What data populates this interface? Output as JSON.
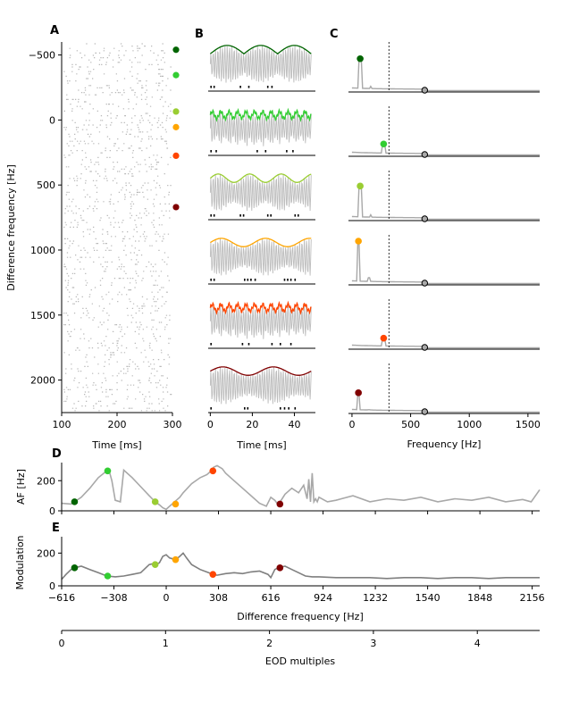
{
  "chart_data": [
    {
      "panel": "A",
      "type": "scatter",
      "xlabel": "Time [ms]",
      "ylabel": "Difference frequency [Hz]",
      "xlim": [
        100,
        300
      ],
      "ylim": [
        -600,
        2250
      ],
      "xticks": [
        "100",
        "200",
        "300"
      ],
      "yticks": [
        {
          "v": -500,
          "t": "−500"
        },
        {
          "v": 0,
          "t": "0"
        },
        {
          "v": 500,
          "t": "500"
        },
        {
          "v": 1000,
          "t": "1000"
        },
        {
          "v": 1500,
          "t": "1500"
        },
        {
          "v": 2000,
          "t": "2000"
        }
      ],
      "markers": [
        {
          "y": -540,
          "color": "#006400"
        },
        {
          "y": -345,
          "color": "#32cd32"
        },
        {
          "y": -65,
          "color": "#9acd32"
        },
        {
          "y": 55,
          "color": "#ffa500"
        },
        {
          "y": 275,
          "color": "#ff4500"
        },
        {
          "y": 670,
          "color": "#800000"
        }
      ]
    },
    {
      "panel": "B",
      "type": "line",
      "xlabel": "Time [ms]",
      "xlim": [
        -1,
        50
      ],
      "xticks": [
        "0",
        "20",
        "40"
      ],
      "rows": [
        {
          "color": "#006400",
          "env_period": 16,
          "env_shape": "scallop",
          "spikes": [
            0,
            1.5,
            14,
            18,
            27,
            29
          ]
        },
        {
          "color": "#32cd32",
          "env_period": 4,
          "env_shape": "jagged",
          "spikes": [
            0,
            2.5,
            22,
            26,
            36,
            39
          ]
        },
        {
          "color": "#9acd32",
          "env_period": 15,
          "env_shape": "sine",
          "spikes": [
            0,
            1.5,
            14,
            15.5,
            27,
            28.5,
            40,
            41.5
          ]
        },
        {
          "color": "#ffa500",
          "env_period": 21,
          "env_shape": "sine",
          "spikes": [
            0,
            1.5,
            16,
            17.5,
            19,
            21,
            35,
            36.5,
            38,
            40
          ]
        },
        {
          "color": "#ff4500",
          "env_period": 4,
          "env_shape": "jagged",
          "spikes": [
            0,
            15,
            18,
            29,
            33,
            38
          ]
        },
        {
          "color": "#800000",
          "env_period": 24,
          "env_shape": "sine",
          "spikes": [
            0,
            16,
            17.5,
            33,
            35,
            37,
            40
          ]
        }
      ]
    },
    {
      "panel": "C",
      "type": "line",
      "xlabel": "Frequency [Hz]",
      "xlim": [
        -30,
        1600
      ],
      "xticks": [
        "0",
        "500",
        "1000",
        "1500"
      ],
      "eod_line": 315,
      "open_marker_x": 620,
      "rows": [
        {
          "color": "#006400",
          "peak_x": 70,
          "peak_level": 0.75
        },
        {
          "color": "#32cd32",
          "peak_x": 270,
          "peak_level": 0.25
        },
        {
          "color": "#9acd32",
          "peak_x": 70,
          "peak_level": 0.78
        },
        {
          "color": "#ffa500",
          "peak_x": 55,
          "peak_level": 1.0
        },
        {
          "color": "#ff4500",
          "peak_x": 270,
          "peak_level": 0.22
        },
        {
          "color": "#800000",
          "peak_x": 55,
          "peak_level": 0.45
        }
      ]
    },
    {
      "panel": "D",
      "type": "line",
      "ylabel": "AF [Hz]",
      "xlim": [
        -616,
        2200
      ],
      "ylim": [
        0,
        320
      ],
      "yticks": [
        "0",
        "200"
      ],
      "x": [
        -616,
        -560,
        -540,
        -500,
        -450,
        -400,
        -350,
        -335,
        -320,
        -300,
        -270,
        -250,
        -200,
        -150,
        -100,
        -65,
        -40,
        -20,
        0,
        20,
        40,
        60,
        80,
        100,
        150,
        200,
        240,
        260,
        280,
        300,
        330,
        350,
        400,
        450,
        500,
        550,
        590,
        616,
        640,
        660,
        700,
        740,
        780,
        810,
        830,
        840,
        850,
        860,
        870,
        880,
        890,
        900,
        950,
        1000,
        1100,
        1200,
        1300,
        1400,
        1500,
        1600,
        1700,
        1800,
        1900,
        2000,
        2100,
        2150,
        2200
      ],
      "y": [
        50,
        45,
        60,
        90,
        150,
        220,
        265,
        260,
        200,
        70,
        60,
        270,
        220,
        160,
        100,
        60,
        40,
        20,
        10,
        30,
        50,
        70,
        90,
        120,
        180,
        220,
        240,
        260,
        290,
        300,
        280,
        250,
        200,
        150,
        100,
        50,
        30,
        90,
        70,
        40,
        110,
        150,
        120,
        170,
        80,
        210,
        60,
        250,
        60,
        80,
        60,
        90,
        60,
        70,
        100,
        60,
        80,
        70,
        90,
        60,
        80,
        70,
        90,
        60,
        75,
        60,
        140
      ],
      "markers": [
        {
          "x": -540,
          "y": 60,
          "color": "#006400"
        },
        {
          "x": -345,
          "y": 265,
          "color": "#32cd32"
        },
        {
          "x": -65,
          "y": 60,
          "color": "#9acd32"
        },
        {
          "x": 55,
          "y": 45,
          "color": "#ffa500"
        },
        {
          "x": 275,
          "y": 265,
          "color": "#ff4500"
        },
        {
          "x": 670,
          "y": 45,
          "color": "#800000"
        }
      ]
    },
    {
      "panel": "E",
      "type": "line",
      "xlabel": "Difference frequency [Hz]",
      "ylabel": "Modulation",
      "xlim": [
        -616,
        2200
      ],
      "ylim": [
        0,
        300
      ],
      "yticks": [
        "0",
        "200"
      ],
      "xticks": [
        "−616",
        "−308",
        "0",
        "308",
        "616",
        "924",
        "1232",
        "1540",
        "1848",
        "2156"
      ],
      "x": [
        -616,
        -590,
        -560,
        -540,
        -500,
        -450,
        -400,
        -350,
        -300,
        -250,
        -200,
        -150,
        -120,
        -100,
        -80,
        -65,
        -40,
        -20,
        0,
        20,
        40,
        55,
        80,
        100,
        120,
        150,
        200,
        250,
        275,
        300,
        350,
        400,
        450,
        500,
        550,
        600,
        616,
        640,
        660,
        680,
        700,
        740,
        780,
        820,
        860,
        900,
        1000,
        1100,
        1200,
        1300,
        1400,
        1500,
        1600,
        1700,
        1800,
        1900,
        2000,
        2100,
        2200
      ],
      "y": [
        40,
        70,
        100,
        110,
        120,
        100,
        80,
        60,
        55,
        60,
        70,
        80,
        110,
        130,
        135,
        130,
        140,
        180,
        190,
        170,
        165,
        160,
        180,
        200,
        170,
        130,
        100,
        80,
        70,
        65,
        75,
        80,
        75,
        85,
        90,
        70,
        50,
        100,
        110,
        115,
        120,
        100,
        80,
        60,
        55,
        55,
        50,
        50,
        50,
        45,
        50,
        50,
        45,
        50,
        50,
        45,
        50,
        50,
        50
      ],
      "markers": [
        {
          "x": -540,
          "y": 110,
          "color": "#006400"
        },
        {
          "x": -345,
          "y": 60,
          "color": "#32cd32"
        },
        {
          "x": -65,
          "y": 130,
          "color": "#9acd32"
        },
        {
          "x": 55,
          "y": 160,
          "color": "#ffa500"
        },
        {
          "x": 275,
          "y": 70,
          "color": "#ff4500"
        },
        {
          "x": 670,
          "y": 110,
          "color": "#800000"
        }
      ]
    },
    {
      "panel": "EOD axis",
      "type": "axis",
      "xlabel": "EOD multiples",
      "xlim": [
        0,
        4.6
      ],
      "xticks": [
        "0",
        "1",
        "2",
        "3",
        "4"
      ]
    }
  ]
}
